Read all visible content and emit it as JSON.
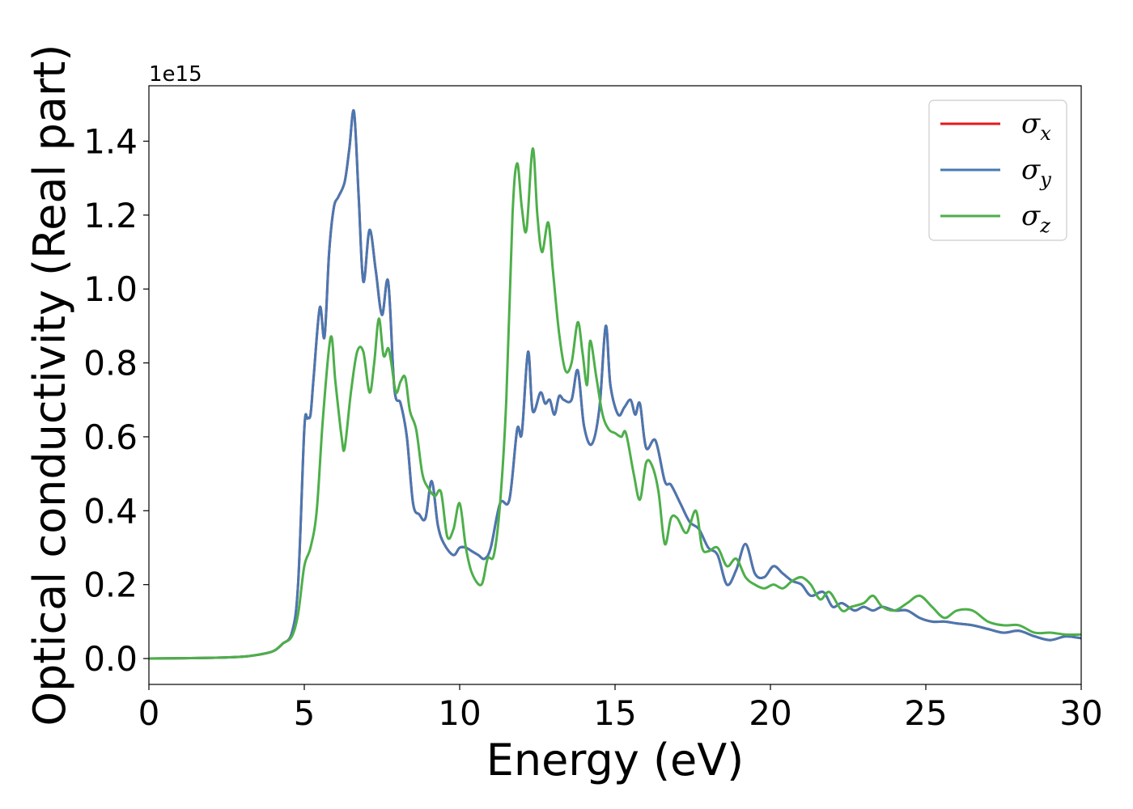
{
  "chart_data": {
    "type": "line",
    "xlabel": "Energy (eV)",
    "ylabel": "Optical conductivity (Real part)",
    "y_offset_label": "1e15",
    "xlim": [
      0,
      30
    ],
    "ylim": [
      -0.07,
      1.55
    ],
    "xticks": [
      0,
      5,
      10,
      15,
      20,
      25,
      30
    ],
    "xtick_labels": [
      "0",
      "5",
      "10",
      "15",
      "20",
      "25",
      "30"
    ],
    "yticks": [
      0.0,
      0.2,
      0.4,
      0.6,
      0.8,
      1.0,
      1.2,
      1.4
    ],
    "ytick_labels": [
      "0.0",
      "0.2",
      "0.4",
      "0.6",
      "0.8",
      "1.0",
      "1.2",
      "1.4"
    ],
    "grid": false,
    "legend_position": "top-right",
    "series": [
      {
        "name": "σx",
        "name_base": "σ",
        "name_sub": "x",
        "color": "#e41a1c",
        "x": [
          0,
          2,
          3,
          3.5,
          4,
          4.3,
          4.6,
          4.8,
          5.0,
          5.1,
          5.2,
          5.3,
          5.5,
          5.65,
          5.8,
          5.95,
          6.1,
          6.3,
          6.45,
          6.6,
          6.75,
          6.9,
          7.1,
          7.3,
          7.5,
          7.7,
          7.9,
          8.1,
          8.3,
          8.5,
          8.7,
          8.9,
          9.1,
          9.3,
          9.5,
          9.8,
          10.0,
          10.2,
          10.4,
          10.6,
          10.8,
          11.0,
          11.3,
          11.6,
          11.85,
          12.0,
          12.2,
          12.35,
          12.6,
          12.75,
          12.9,
          13.05,
          13.2,
          13.35,
          13.6,
          13.8,
          14.0,
          14.25,
          14.5,
          14.7,
          14.85,
          15.1,
          15.3,
          15.5,
          15.65,
          15.8,
          16.0,
          16.3,
          16.6,
          16.8,
          17.1,
          17.4,
          17.7,
          18.0,
          18.3,
          18.6,
          18.9,
          19.2,
          19.5,
          19.8,
          20.1,
          20.4,
          20.7,
          21.0,
          21.3,
          21.7,
          22.0,
          22.3,
          22.7,
          23.0,
          23.3,
          23.6,
          24.0,
          24.4,
          24.8,
          25.2,
          25.6,
          26.0,
          26.5,
          27.0,
          27.5,
          28.0,
          28.5,
          29.0,
          29.5,
          30.0
        ],
        "values": [
          0,
          0.002,
          0.005,
          0.01,
          0.02,
          0.04,
          0.07,
          0.2,
          0.62,
          0.65,
          0.66,
          0.76,
          0.95,
          0.87,
          1.1,
          1.22,
          1.25,
          1.29,
          1.38,
          1.48,
          1.25,
          1.02,
          1.16,
          1.05,
          0.93,
          1.02,
          0.73,
          0.69,
          0.6,
          0.42,
          0.39,
          0.38,
          0.48,
          0.36,
          0.31,
          0.28,
          0.3,
          0.3,
          0.29,
          0.28,
          0.27,
          0.3,
          0.42,
          0.43,
          0.62,
          0.61,
          0.83,
          0.67,
          0.72,
          0.69,
          0.7,
          0.66,
          0.71,
          0.7,
          0.7,
          0.78,
          0.63,
          0.58,
          0.68,
          0.9,
          0.74,
          0.66,
          0.68,
          0.7,
          0.66,
          0.69,
          0.57,
          0.59,
          0.48,
          0.47,
          0.42,
          0.37,
          0.35,
          0.3,
          0.28,
          0.2,
          0.24,
          0.31,
          0.23,
          0.22,
          0.25,
          0.23,
          0.21,
          0.2,
          0.17,
          0.18,
          0.14,
          0.15,
          0.13,
          0.14,
          0.13,
          0.14,
          0.13,
          0.13,
          0.11,
          0.1,
          0.1,
          0.095,
          0.09,
          0.08,
          0.07,
          0.075,
          0.06,
          0.05,
          0.06,
          0.055
        ]
      },
      {
        "name": "σy",
        "name_base": "σ",
        "name_sub": "y",
        "color": "#4878b2",
        "x": [
          0,
          2,
          3,
          3.5,
          4,
          4.3,
          4.6,
          4.8,
          5.0,
          5.1,
          5.2,
          5.3,
          5.5,
          5.65,
          5.8,
          5.95,
          6.1,
          6.3,
          6.45,
          6.6,
          6.75,
          6.9,
          7.1,
          7.3,
          7.5,
          7.7,
          7.9,
          8.1,
          8.3,
          8.5,
          8.7,
          8.9,
          9.1,
          9.3,
          9.5,
          9.8,
          10.0,
          10.2,
          10.4,
          10.6,
          10.8,
          11.0,
          11.3,
          11.6,
          11.85,
          12.0,
          12.2,
          12.35,
          12.6,
          12.75,
          12.9,
          13.05,
          13.2,
          13.35,
          13.6,
          13.8,
          14.0,
          14.25,
          14.5,
          14.7,
          14.85,
          15.1,
          15.3,
          15.5,
          15.65,
          15.8,
          16.0,
          16.3,
          16.6,
          16.8,
          17.1,
          17.4,
          17.7,
          18.0,
          18.3,
          18.6,
          18.9,
          19.2,
          19.5,
          19.8,
          20.1,
          20.4,
          20.7,
          21.0,
          21.3,
          21.7,
          22.0,
          22.3,
          22.7,
          23.0,
          23.3,
          23.6,
          24.0,
          24.4,
          24.8,
          25.2,
          25.6,
          26.0,
          26.5,
          27.0,
          27.5,
          28.0,
          28.5,
          29.0,
          29.5,
          30.0
        ],
        "values": [
          0,
          0.002,
          0.005,
          0.01,
          0.02,
          0.04,
          0.07,
          0.2,
          0.62,
          0.65,
          0.66,
          0.76,
          0.95,
          0.87,
          1.1,
          1.22,
          1.25,
          1.29,
          1.38,
          1.48,
          1.25,
          1.02,
          1.16,
          1.05,
          0.93,
          1.02,
          0.73,
          0.69,
          0.6,
          0.42,
          0.39,
          0.38,
          0.48,
          0.36,
          0.31,
          0.28,
          0.3,
          0.3,
          0.29,
          0.28,
          0.27,
          0.3,
          0.42,
          0.43,
          0.62,
          0.61,
          0.83,
          0.67,
          0.72,
          0.69,
          0.7,
          0.66,
          0.71,
          0.7,
          0.7,
          0.78,
          0.63,
          0.58,
          0.68,
          0.9,
          0.74,
          0.66,
          0.68,
          0.7,
          0.66,
          0.69,
          0.57,
          0.59,
          0.48,
          0.47,
          0.42,
          0.37,
          0.35,
          0.3,
          0.28,
          0.2,
          0.24,
          0.31,
          0.23,
          0.22,
          0.25,
          0.23,
          0.21,
          0.2,
          0.17,
          0.18,
          0.14,
          0.15,
          0.13,
          0.14,
          0.13,
          0.14,
          0.13,
          0.13,
          0.11,
          0.1,
          0.1,
          0.095,
          0.09,
          0.08,
          0.07,
          0.075,
          0.06,
          0.05,
          0.06,
          0.055
        ]
      },
      {
        "name": "σz",
        "name_base": "σ",
        "name_sub": "z",
        "color": "#4daf4a",
        "x": [
          0,
          2,
          3,
          3.5,
          4,
          4.3,
          4.6,
          4.8,
          5.0,
          5.2,
          5.4,
          5.6,
          5.85,
          6.0,
          6.2,
          6.3,
          6.5,
          6.7,
          6.9,
          7.1,
          7.25,
          7.4,
          7.55,
          7.7,
          7.8,
          7.95,
          8.1,
          8.25,
          8.4,
          8.6,
          8.8,
          9.0,
          9.2,
          9.4,
          9.6,
          9.8,
          10.0,
          10.2,
          10.4,
          10.7,
          10.9,
          11.1,
          11.3,
          11.5,
          11.7,
          11.85,
          12.0,
          12.15,
          12.35,
          12.5,
          12.65,
          12.85,
          13.0,
          13.2,
          13.4,
          13.6,
          13.8,
          13.95,
          14.1,
          14.2,
          14.4,
          14.6,
          14.8,
          15.0,
          15.2,
          15.35,
          15.6,
          15.8,
          16.0,
          16.2,
          16.4,
          16.6,
          16.8,
          17.0,
          17.3,
          17.6,
          17.8,
          18.0,
          18.3,
          18.6,
          18.9,
          19.2,
          19.5,
          19.8,
          20.1,
          20.4,
          20.7,
          21.0,
          21.3,
          21.6,
          21.9,
          22.3,
          22.6,
          23.0,
          23.3,
          23.6,
          24.0,
          24.4,
          24.8,
          25.2,
          25.6,
          26.0,
          26.5,
          27.0,
          27.5,
          28.0,
          28.5,
          29.0,
          29.5,
          30.0
        ],
        "values": [
          0,
          0.002,
          0.005,
          0.01,
          0.02,
          0.04,
          0.06,
          0.12,
          0.25,
          0.3,
          0.4,
          0.65,
          0.87,
          0.75,
          0.6,
          0.57,
          0.72,
          0.83,
          0.83,
          0.72,
          0.8,
          0.92,
          0.82,
          0.84,
          0.8,
          0.72,
          0.75,
          0.76,
          0.67,
          0.62,
          0.5,
          0.46,
          0.44,
          0.45,
          0.33,
          0.35,
          0.42,
          0.3,
          0.23,
          0.2,
          0.27,
          0.28,
          0.42,
          0.7,
          1.2,
          1.34,
          1.22,
          1.16,
          1.38,
          1.2,
          1.1,
          1.18,
          1.05,
          0.88,
          0.78,
          0.8,
          0.91,
          0.83,
          0.74,
          0.86,
          0.76,
          0.66,
          0.62,
          0.61,
          0.6,
          0.61,
          0.5,
          0.43,
          0.53,
          0.52,
          0.45,
          0.31,
          0.38,
          0.38,
          0.34,
          0.4,
          0.3,
          0.29,
          0.3,
          0.25,
          0.27,
          0.22,
          0.2,
          0.19,
          0.2,
          0.19,
          0.21,
          0.22,
          0.2,
          0.16,
          0.18,
          0.13,
          0.14,
          0.15,
          0.17,
          0.14,
          0.13,
          0.15,
          0.17,
          0.14,
          0.11,
          0.13,
          0.13,
          0.1,
          0.09,
          0.09,
          0.07,
          0.07,
          0.065,
          0.065
        ]
      }
    ]
  }
}
